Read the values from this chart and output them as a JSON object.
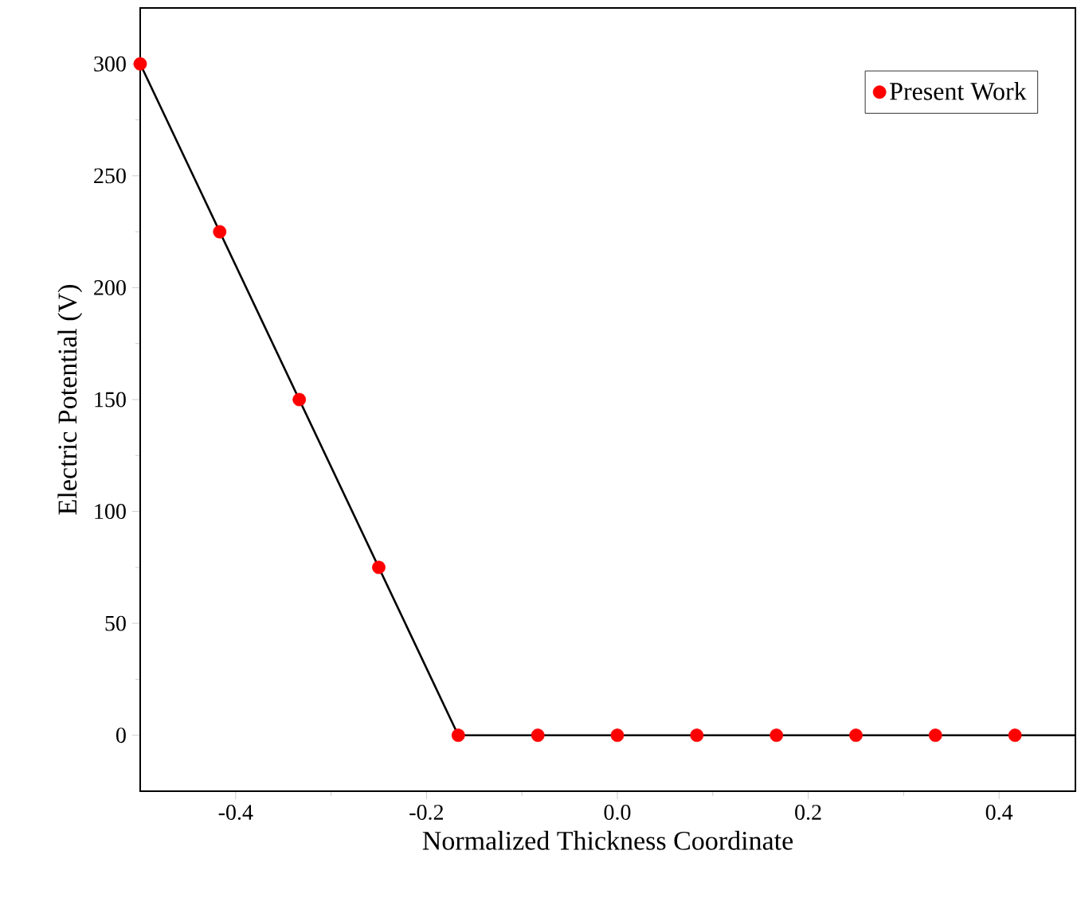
{
  "chart_data": {
    "type": "line",
    "xlabel": "Normalized Thickness Coordinate",
    "ylabel": "Electric Potential (V)",
    "xlim": [
      -0.5,
      0.48
    ],
    "ylim": [
      -25,
      325
    ],
    "xticks": [
      {
        "value": -0.4,
        "label": "-0.4"
      },
      {
        "value": -0.2,
        "label": "-0.2"
      },
      {
        "value": 0,
        "label": "0.0"
      },
      {
        "value": 0.2,
        "label": "0.2"
      },
      {
        "value": 0.4,
        "label": "0.4"
      }
    ],
    "yticks": [
      0,
      50,
      100,
      150,
      200,
      250,
      300
    ],
    "legend": "top right",
    "grid": false,
    "series": [
      {
        "color": "#000000",
        "line_style": "solid",
        "marker": "none",
        "x": [
          -0.5,
          -0.1667,
          0.48
        ],
        "values": [
          300,
          0,
          0
        ]
      },
      {
        "type": "scatter",
        "name": "Present Work",
        "color": "#ff0000",
        "marker": "circle",
        "x": [
          -0.5,
          -0.4167,
          -0.3333,
          -0.25,
          -0.1667,
          -0.0833,
          0,
          0.0833,
          0.1667,
          0.25,
          0.3333,
          0.4167
        ],
        "values": [
          300,
          225,
          150,
          75,
          0,
          0,
          0,
          0,
          0,
          0,
          0,
          0
        ]
      }
    ]
  }
}
